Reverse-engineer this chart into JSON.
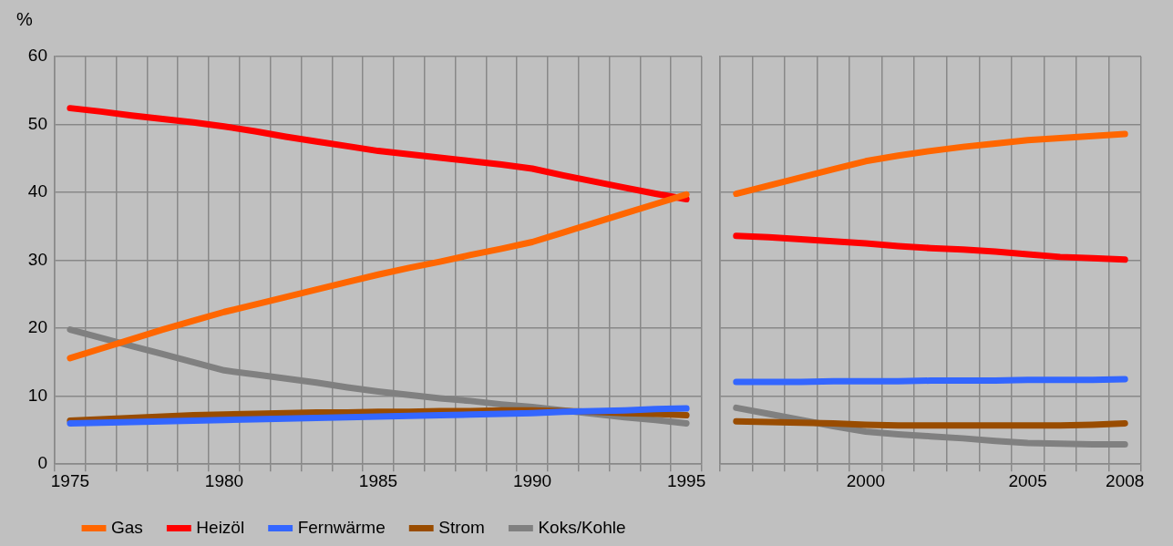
{
  "chart_data": [
    {
      "type": "line",
      "ylabel": "%",
      "categories": [
        "1975",
        null,
        null,
        null,
        null,
        "1980",
        null,
        null,
        null,
        null,
        "1985",
        null,
        null,
        null,
        null,
        "1990",
        null,
        null,
        null,
        null,
        "1995"
      ],
      "ylim": [
        0,
        60
      ],
      "yticks": [
        0,
        10,
        20,
        30,
        40,
        50,
        60
      ],
      "grid": true,
      "legend": "bottom",
      "series": [
        {
          "name": "Gas",
          "color": "#ff6600",
          "values": [
            15.6,
            17.0,
            18.4,
            19.8,
            21.1,
            22.4,
            23.5,
            24.6,
            25.7,
            26.8,
            27.9,
            28.9,
            29.8,
            30.8,
            31.7,
            32.7,
            34.1,
            35.5,
            36.9,
            38.3,
            39.7
          ]
        },
        {
          "name": "Heizöl",
          "color": "#ff0000",
          "values": [
            52.4,
            51.9,
            51.3,
            50.8,
            50.3,
            49.7,
            49.0,
            48.2,
            47.5,
            46.8,
            46.1,
            45.6,
            45.1,
            44.6,
            44.1,
            43.5,
            42.5,
            41.6,
            40.7,
            39.8,
            39.0
          ]
        },
        {
          "name": "Fernwärme",
          "color": "#3366ff",
          "values": [
            6.0,
            6.1,
            6.2,
            6.3,
            6.4,
            6.5,
            6.6,
            6.7,
            6.8,
            6.9,
            7.0,
            7.1,
            7.2,
            7.3,
            7.4,
            7.5,
            7.7,
            7.8,
            7.9,
            8.1,
            8.2
          ]
        },
        {
          "name": "Strom",
          "color": "#994c00",
          "values": [
            6.4,
            6.6,
            6.8,
            7.0,
            7.2,
            7.3,
            7.4,
            7.5,
            7.6,
            7.6,
            7.7,
            7.7,
            7.8,
            7.8,
            7.9,
            7.9,
            7.8,
            7.7,
            7.5,
            7.4,
            7.2
          ]
        },
        {
          "name": "Koks/Kohle",
          "color": "#808080",
          "values": [
            19.8,
            18.6,
            17.4,
            16.2,
            15.0,
            13.8,
            13.2,
            12.6,
            12.0,
            11.3,
            10.7,
            10.2,
            9.7,
            9.3,
            8.8,
            8.4,
            7.9,
            7.4,
            6.9,
            6.5,
            6.0
          ]
        }
      ]
    },
    {
      "type": "line",
      "categories": [
        null,
        null,
        null,
        null,
        "2000",
        null,
        null,
        null,
        null,
        "2005",
        null,
        null,
        "2008"
      ],
      "ylim": [
        0,
        60
      ],
      "yticks": [
        0,
        10,
        20,
        30,
        40,
        50,
        60
      ],
      "grid": true,
      "tick_labels": "x",
      "series": [
        {
          "color": "#ff6600",
          "values": [
            39.8,
            41.0,
            42.2,
            43.4,
            44.6,
            45.4,
            46.1,
            46.7,
            47.2,
            47.7,
            48.0,
            48.3,
            48.6
          ]
        },
        {
          "color": "#ff0000",
          "values": [
            33.6,
            33.4,
            33.1,
            32.8,
            32.5,
            32.1,
            31.8,
            31.6,
            31.3,
            30.9,
            30.5,
            30.3,
            30.1
          ]
        },
        {
          "color": "#3366ff",
          "values": [
            12.1,
            12.1,
            12.1,
            12.2,
            12.2,
            12.2,
            12.3,
            12.3,
            12.3,
            12.4,
            12.4,
            12.4,
            12.5
          ]
        },
        {
          "color": "#994c00",
          "values": [
            6.3,
            6.2,
            6.1,
            6.0,
            5.8,
            5.7,
            5.7,
            5.7,
            5.7,
            5.7,
            5.7,
            5.8,
            6.0
          ]
        },
        {
          "color": "#808080",
          "values": [
            8.3,
            7.4,
            6.5,
            5.6,
            4.8,
            4.4,
            4.1,
            3.8,
            3.4,
            3.1,
            3.0,
            2.9,
            2.9
          ]
        }
      ]
    }
  ]
}
